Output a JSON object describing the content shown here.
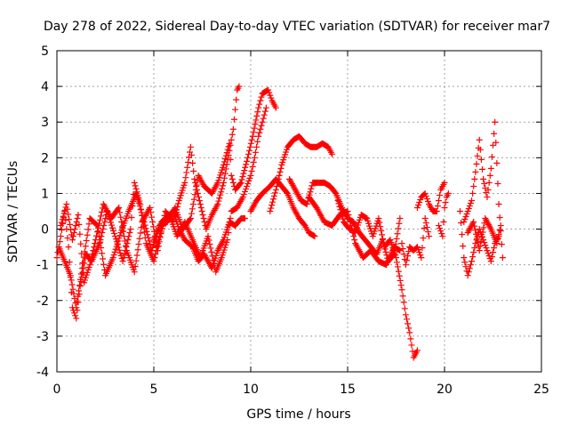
{
  "chart_data": {
    "type": "scatter",
    "title": "Day 278 of 2022, Sidereal Day-to-day VTEC variation (SDTVAR) for receiver mar7",
    "xlabel": "GPS time / hours",
    "ylabel": "SDTVAR / TECUs",
    "xlim": [
      0,
      25
    ],
    "ylim": [
      -4,
      5
    ],
    "xticks": [
      0,
      5,
      10,
      15,
      20,
      25
    ],
    "yticks": [
      -4,
      -3,
      -2,
      -1,
      0,
      1,
      2,
      3,
      4,
      5
    ],
    "grid": true,
    "marker": "+",
    "color": "#ff0000",
    "series": [
      {
        "name": "s1",
        "points": [
          [
            0.0,
            -0.8
          ],
          [
            0.2,
            -0.2
          ],
          [
            0.4,
            0.5
          ],
          [
            0.6,
            -0.5
          ],
          [
            0.8,
            -2.2
          ],
          [
            1.0,
            -2.5
          ],
          [
            1.2,
            -1.6
          ],
          [
            1.5,
            -0.7
          ],
          [
            1.8,
            -0.9
          ],
          [
            2.2,
            -0.4
          ],
          [
            2.6,
            0.5
          ],
          [
            3.0,
            -0.2
          ],
          [
            3.4,
            -0.9
          ],
          [
            3.8,
            0.0
          ],
          [
            4.0,
            1.3
          ],
          [
            4.3,
            0.7
          ],
          [
            4.6,
            -0.4
          ],
          [
            5.0,
            -0.9
          ],
          [
            5.3,
            -0.2
          ],
          [
            5.6,
            0.3
          ],
          [
            6.0,
            0.5
          ],
          [
            6.3,
            0.0
          ],
          [
            6.6,
            -0.3
          ],
          [
            7.0,
            -0.5
          ],
          [
            7.3,
            -0.9
          ],
          [
            7.6,
            -0.7
          ],
          [
            8.0,
            -1.1
          ],
          [
            8.3,
            -0.6
          ],
          [
            8.6,
            -0.3
          ],
          [
            8.9,
            0.2
          ],
          [
            9.2,
            0.1
          ],
          [
            9.5,
            0.3
          ],
          [
            9.7,
            0.3
          ]
        ]
      },
      {
        "name": "s2",
        "points": [
          [
            0.2,
            0.1
          ],
          [
            0.5,
            0.7
          ],
          [
            0.8,
            -0.3
          ],
          [
            1.1,
            0.4
          ],
          [
            1.4,
            -1.5
          ],
          [
            1.7,
            -1.0
          ],
          [
            2.0,
            -0.3
          ],
          [
            2.4,
            0.7
          ],
          [
            2.8,
            0.3
          ],
          [
            3.2,
            0.6
          ],
          [
            3.6,
            -0.6
          ],
          [
            4.0,
            -1.2
          ],
          [
            4.4,
            0.2
          ],
          [
            4.8,
            0.6
          ],
          [
            5.2,
            -0.6
          ],
          [
            5.6,
            0.5
          ],
          [
            6.0,
            0.2
          ],
          [
            6.3,
            0.8
          ],
          [
            6.6,
            1.3
          ],
          [
            6.9,
            2.3
          ],
          [
            7.1,
            1.4
          ],
          [
            7.4,
            0.7
          ],
          [
            7.7,
            0.0
          ],
          [
            8.0,
            0.4
          ],
          [
            8.3,
            0.7
          ],
          [
            8.6,
            1.3
          ],
          [
            8.9,
            2.2
          ],
          [
            9.1,
            2.8
          ],
          [
            9.3,
            3.9
          ],
          [
            9.4,
            4.0
          ]
        ]
      },
      {
        "name": "s3",
        "points": [
          [
            0.1,
            -0.5
          ],
          [
            0.4,
            -0.9
          ],
          [
            0.7,
            -1.3
          ],
          [
            1.0,
            -2.2
          ],
          [
            1.3,
            -1.1
          ],
          [
            1.7,
            0.3
          ],
          [
            2.1,
            0.1
          ],
          [
            2.5,
            -1.3
          ],
          [
            2.9,
            -0.8
          ],
          [
            3.3,
            -0.1
          ],
          [
            3.7,
            0.5
          ],
          [
            4.1,
            1.0
          ],
          [
            4.5,
            0.2
          ],
          [
            4.9,
            -0.6
          ],
          [
            5.3,
            0.1
          ],
          [
            5.7,
            0.2
          ],
          [
            6.1,
            0.6
          ],
          [
            6.5,
            0.0
          ],
          [
            6.9,
            0.3
          ],
          [
            7.3,
            1.5
          ],
          [
            7.6,
            1.2
          ],
          [
            8.0,
            1.0
          ],
          [
            8.3,
            1.3
          ],
          [
            8.6,
            1.8
          ],
          [
            8.9,
            2.4
          ],
          [
            9.0,
            1.5
          ],
          [
            9.2,
            1.1
          ],
          [
            9.5,
            1.3
          ],
          [
            9.8,
            1.9
          ],
          [
            10.1,
            2.6
          ],
          [
            10.4,
            3.4
          ],
          [
            10.6,
            3.8
          ],
          [
            10.9,
            3.9
          ],
          [
            11.1,
            3.6
          ],
          [
            11.3,
            3.4
          ]
        ]
      },
      {
        "name": "s4",
        "points": [
          [
            5.0,
            -0.3
          ],
          [
            5.4,
            0.2
          ],
          [
            5.8,
            0.4
          ],
          [
            6.2,
            -0.2
          ],
          [
            6.6,
            0.2
          ],
          [
            7.0,
            -0.3
          ],
          [
            7.4,
            -0.8
          ],
          [
            7.8,
            -0.2
          ],
          [
            8.2,
            -1.2
          ],
          [
            8.5,
            -0.8
          ],
          [
            8.8,
            -0.3
          ],
          [
            9.0,
            0.5
          ],
          [
            9.3,
            0.6
          ],
          [
            9.6,
            0.9
          ],
          [
            9.8,
            1.2
          ],
          [
            10.0,
            1.5
          ],
          [
            10.2,
            2.0
          ],
          [
            10.4,
            2.6
          ],
          [
            10.6,
            3.0
          ],
          [
            10.8,
            3.4
          ]
        ]
      },
      {
        "name": "s5",
        "points": [
          [
            10.0,
            0.5
          ],
          [
            10.3,
            0.8
          ],
          [
            10.6,
            1.0
          ],
          [
            11.0,
            1.2
          ],
          [
            11.3,
            1.4
          ],
          [
            11.6,
            1.2
          ],
          [
            11.9,
            1.0
          ],
          [
            12.2,
            0.6
          ],
          [
            12.5,
            0.3
          ],
          [
            12.8,
            0.1
          ],
          [
            13.0,
            -0.1
          ],
          [
            13.3,
            -0.2
          ]
        ]
      },
      {
        "name": "s6",
        "points": [
          [
            11.0,
            0.5
          ],
          [
            11.3,
            1.1
          ],
          [
            11.6,
            1.8
          ],
          [
            11.9,
            2.3
          ],
          [
            12.2,
            2.5
          ],
          [
            12.5,
            2.6
          ],
          [
            12.8,
            2.4
          ],
          [
            13.1,
            2.3
          ],
          [
            13.4,
            2.3
          ],
          [
            13.7,
            2.4
          ],
          [
            14.0,
            2.3
          ],
          [
            14.2,
            2.1
          ]
        ]
      },
      {
        "name": "s7",
        "points": [
          [
            12.0,
            1.4
          ],
          [
            12.3,
            1.1
          ],
          [
            12.6,
            0.8
          ],
          [
            12.9,
            0.7
          ],
          [
            13.2,
            1.3
          ],
          [
            13.5,
            1.3
          ],
          [
            13.8,
            1.3
          ],
          [
            14.1,
            1.2
          ],
          [
            14.4,
            1.0
          ],
          [
            14.7,
            0.6
          ],
          [
            15.0,
            0.3
          ],
          [
            15.3,
            0.2
          ],
          [
            15.6,
            -0.1
          ],
          [
            15.9,
            -0.3
          ],
          [
            16.2,
            -0.5
          ],
          [
            16.5,
            -0.7
          ],
          [
            16.8,
            -0.3
          ],
          [
            17.1,
            -0.9
          ],
          [
            17.4,
            -0.7
          ],
          [
            17.7,
            0.3
          ]
        ]
      },
      {
        "name": "s8",
        "points": [
          [
            13.0,
            0.9
          ],
          [
            13.4,
            0.6
          ],
          [
            13.8,
            0.2
          ],
          [
            14.2,
            0.1
          ],
          [
            14.6,
            0.4
          ],
          [
            15.0,
            0.5
          ],
          [
            15.4,
            -0.4
          ],
          [
            15.8,
            -0.8
          ],
          [
            16.2,
            -0.6
          ],
          [
            16.6,
            -0.9
          ],
          [
            17.0,
            -1.0
          ],
          [
            17.4,
            -0.5
          ],
          [
            17.7,
            -0.6
          ]
        ]
      },
      {
        "name": "s9",
        "points": [
          [
            14.5,
            0.8
          ],
          [
            14.8,
            0.2
          ],
          [
            15.1,
            0.0
          ],
          [
            15.4,
            -0.1
          ],
          [
            15.7,
            0.4
          ],
          [
            16.0,
            0.3
          ],
          [
            16.3,
            -0.2
          ],
          [
            16.6,
            0.3
          ],
          [
            16.9,
            -0.5
          ],
          [
            17.2,
            -0.3
          ],
          [
            17.5,
            -0.8
          ],
          [
            17.8,
            -1.7
          ],
          [
            18.0,
            -2.4
          ],
          [
            18.2,
            -2.9
          ],
          [
            18.4,
            -3.6
          ],
          [
            18.6,
            -3.4
          ]
        ]
      },
      {
        "name": "s10",
        "points": [
          [
            17.8,
            -0.4
          ],
          [
            18.0,
            -1.0
          ],
          [
            18.2,
            -0.5
          ],
          [
            18.4,
            -0.6
          ],
          [
            18.6,
            -0.5
          ],
          [
            18.8,
            -0.8
          ],
          [
            19.0,
            0.3
          ],
          [
            19.2,
            -0.2
          ]
        ]
      },
      {
        "name": "s11",
        "points": [
          [
            18.6,
            0.6
          ],
          [
            18.8,
            0.9
          ],
          [
            19.0,
            1.0
          ],
          [
            19.2,
            0.7
          ],
          [
            19.4,
            0.5
          ],
          [
            19.6,
            0.5
          ],
          [
            19.8,
            1.1
          ],
          [
            20.0,
            1.3
          ]
        ]
      },
      {
        "name": "s12",
        "points": [
          [
            19.7,
            0.1
          ],
          [
            19.9,
            -0.2
          ],
          [
            20.0,
            0.6
          ],
          [
            20.1,
            0.9
          ],
          [
            20.2,
            1.0
          ]
        ]
      },
      {
        "name": "s13",
        "points": [
          [
            20.8,
            0.5
          ],
          [
            21.0,
            -0.8
          ],
          [
            21.2,
            -1.3
          ],
          [
            21.4,
            -0.9
          ],
          [
            21.6,
            -0.4
          ],
          [
            21.8,
            0.0
          ],
          [
            22.0,
            -0.3
          ],
          [
            22.2,
            -0.6
          ],
          [
            22.4,
            -0.9
          ],
          [
            22.6,
            -0.4
          ],
          [
            22.8,
            -0.2
          ]
        ]
      },
      {
        "name": "s14",
        "points": [
          [
            21.0,
            0.2
          ],
          [
            21.2,
            0.5
          ],
          [
            21.4,
            0.8
          ],
          [
            21.6,
            1.6
          ],
          [
            21.8,
            2.5
          ],
          [
            22.0,
            1.4
          ],
          [
            22.2,
            0.9
          ],
          [
            22.4,
            1.7
          ],
          [
            22.6,
            3.0
          ],
          [
            22.8,
            0.7
          ],
          [
            23.0,
            -0.8
          ]
        ]
      },
      {
        "name": "s15",
        "points": [
          [
            21.2,
            -0.1
          ],
          [
            21.5,
            0.2
          ],
          [
            21.8,
            -0.6
          ],
          [
            22.1,
            0.3
          ],
          [
            22.4,
            0.0
          ],
          [
            22.7,
            -0.4
          ],
          [
            22.9,
            0.1
          ]
        ]
      }
    ]
  }
}
